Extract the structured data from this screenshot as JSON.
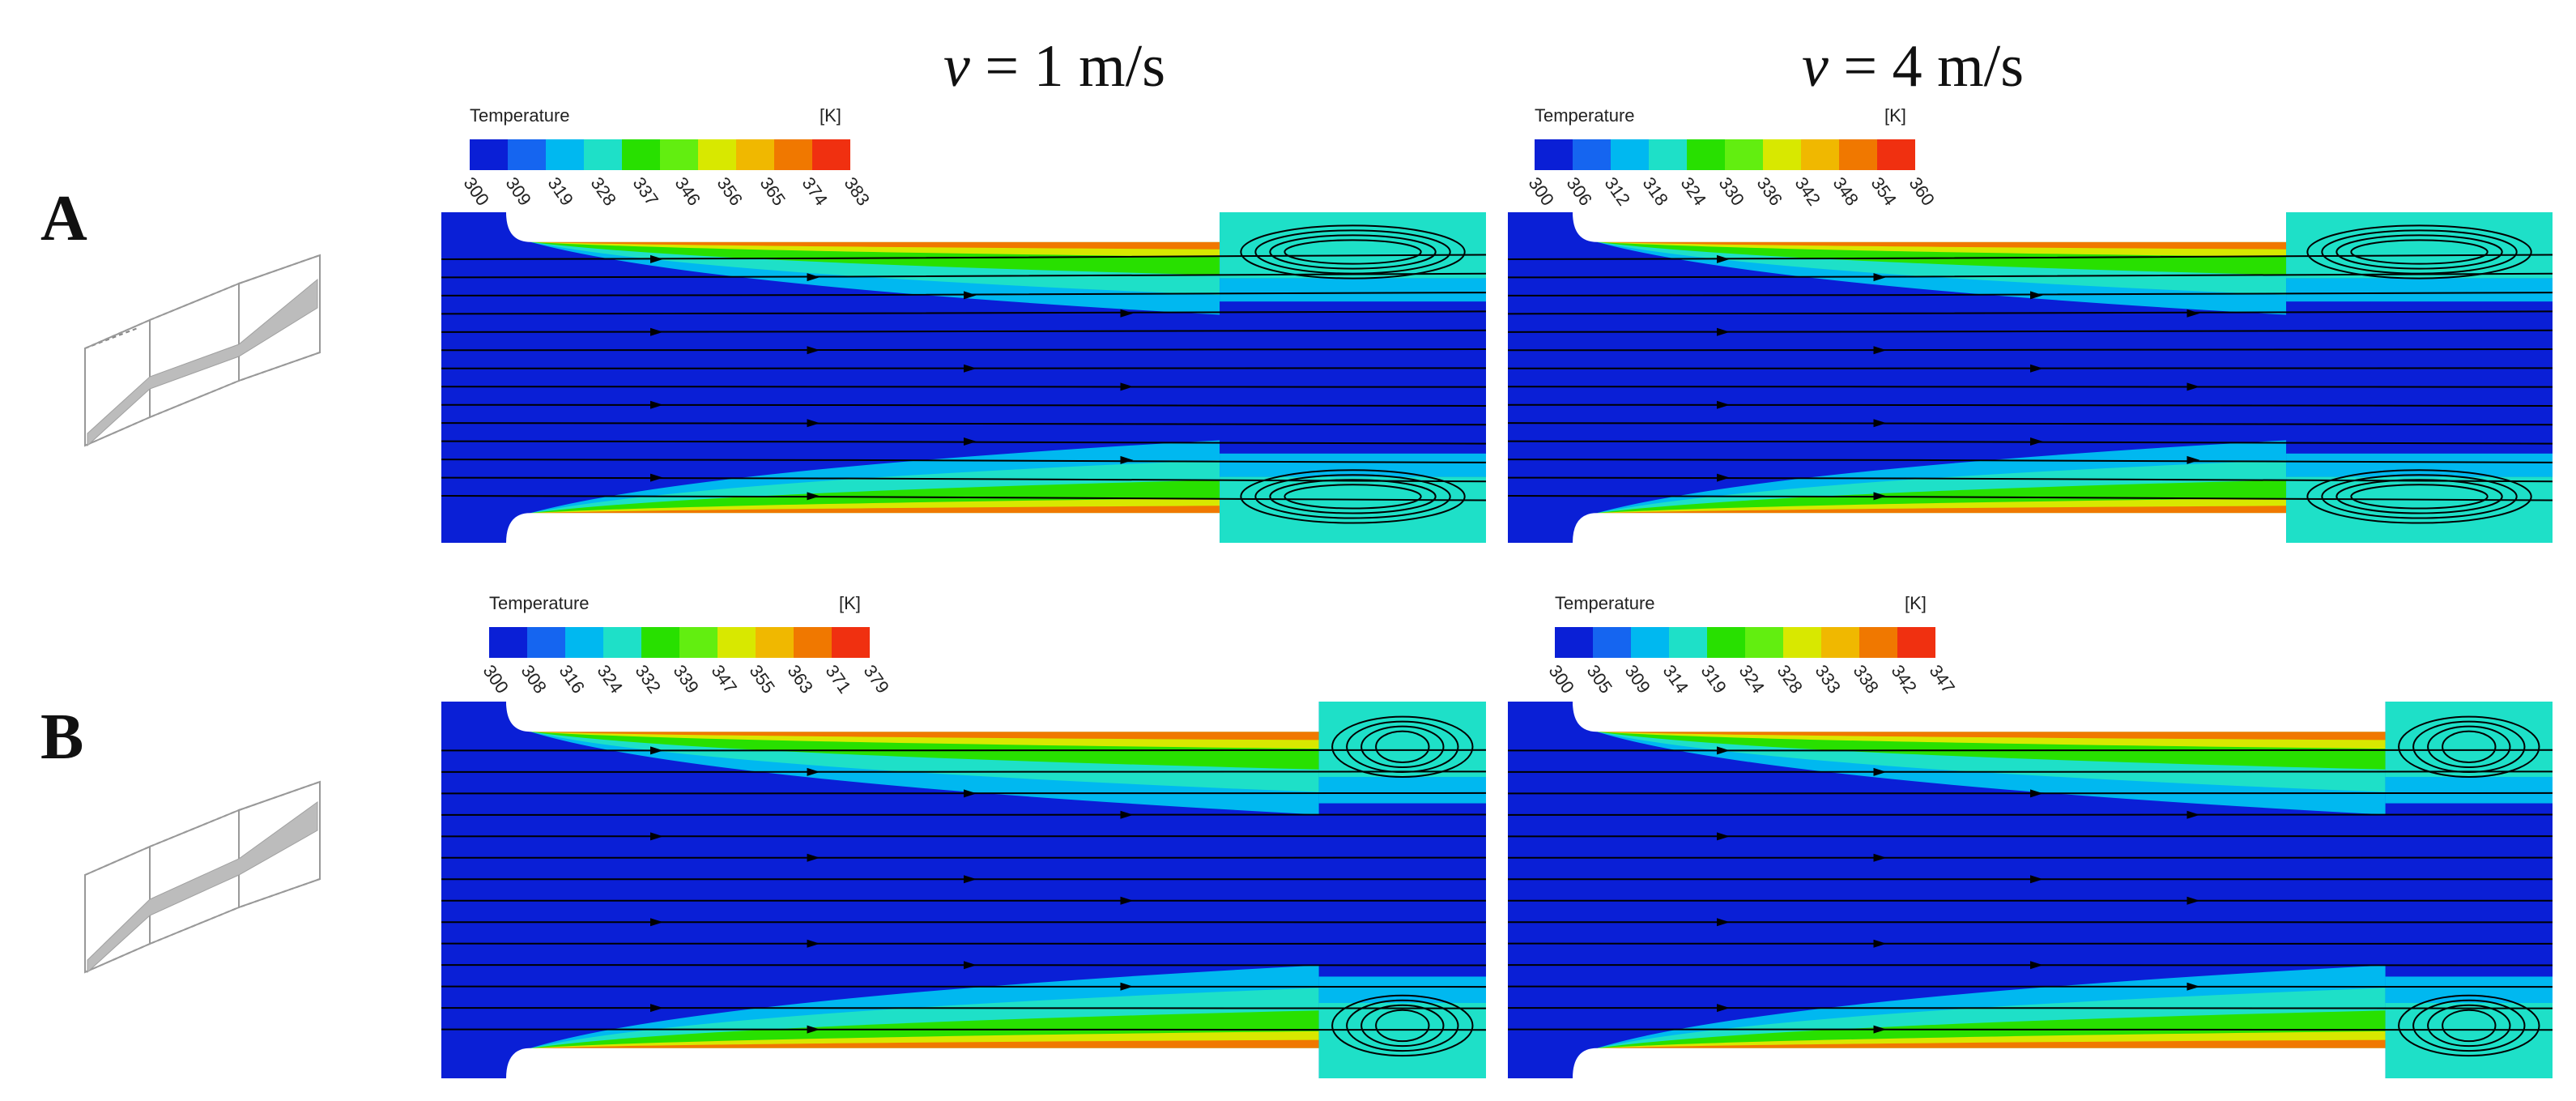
{
  "columns": [
    {
      "prefix": "v",
      "rest": " = 1 m/s"
    },
    {
      "prefix": "v",
      "rest": " = 4 m/s"
    }
  ],
  "rows": [
    {
      "label": "A"
    },
    {
      "label": "B"
    }
  ],
  "colormap": [
    "#0a1fd6",
    "#1565f0",
    "#00b8f0",
    "#1ee0c8",
    "#28e000",
    "#62ee10",
    "#d8e800",
    "#f0b800",
    "#f07800",
    "#f03010"
  ],
  "legends": [
    {
      "title": "Temperature",
      "unit": "[K]",
      "ticks": [
        "300",
        "309",
        "319",
        "328",
        "337",
        "346",
        "356",
        "365",
        "374",
        "383"
      ]
    },
    {
      "title": "Temperature",
      "unit": "[K]",
      "ticks": [
        "300",
        "306",
        "312",
        "318",
        "324",
        "330",
        "336",
        "342",
        "348",
        "354",
        "360"
      ]
    },
    {
      "title": "Temperature",
      "unit": "[K]",
      "ticks": [
        "300",
        "308",
        "316",
        "324",
        "332",
        "339",
        "347",
        "355",
        "363",
        "371",
        "379"
      ]
    },
    {
      "title": "Temperature",
      "unit": "[K]",
      "ticks": [
        "300",
        "305",
        "309",
        "314",
        "319",
        "324",
        "328",
        "333",
        "338",
        "342",
        "347"
      ]
    }
  ]
}
